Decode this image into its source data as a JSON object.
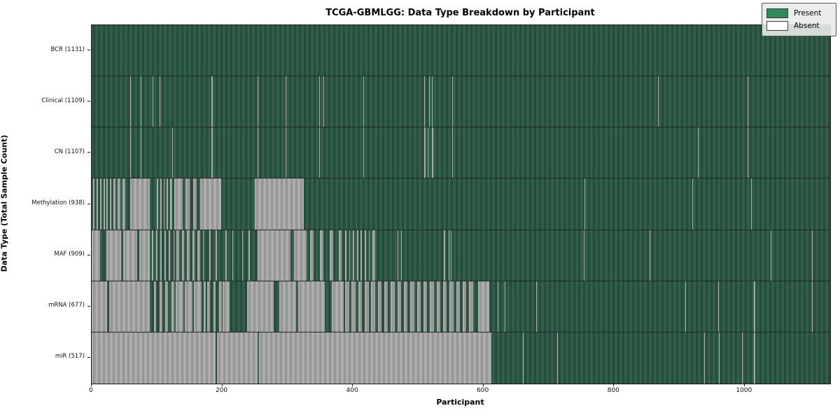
{
  "title": "TCGA-GBMLGG: Data Type Breakdown by Participant",
  "axes": {
    "xlabel": "Participant",
    "ylabel": "Data Type (Total Sample Count)",
    "x_ticks": [
      0,
      200,
      400,
      600,
      800,
      1000
    ],
    "x_min": 0,
    "x_max": 1131
  },
  "legend": {
    "items": [
      {
        "label": "Present",
        "color": "#2e8b57"
      },
      {
        "label": "Absent",
        "color": "#ffffff"
      }
    ]
  },
  "colors": {
    "present_bar": "#2e5c46",
    "absent_bar": "#a6a6a6",
    "plot_border": "#1a1a1a",
    "background": "#ffffff"
  },
  "chart_data": {
    "type": "heatmap",
    "title": "TCGA-GBMLGG: Data Type Breakdown by Participant",
    "xlabel": "Participant",
    "ylabel": "Data Type (Total Sample Count)",
    "n_participants": 1131,
    "legend_position": "upper right",
    "rows": [
      {
        "label": "BCR (1131)",
        "data_type": "BCR",
        "total_samples": 1131,
        "absent_ranges": []
      },
      {
        "label": "Clinical (1109)",
        "data_type": "Clinical",
        "total_samples": 1109,
        "absent_ranges": [
          [
            59,
            60
          ],
          [
            75,
            76
          ],
          [
            93,
            94
          ],
          [
            104,
            105
          ],
          [
            183,
            186
          ],
          [
            254,
            255
          ],
          [
            297,
            298
          ],
          [
            348,
            349
          ],
          [
            355,
            356
          ],
          [
            416,
            417
          ],
          [
            509,
            510
          ],
          [
            517,
            518
          ],
          [
            521,
            522
          ],
          [
            552,
            553
          ],
          [
            867,
            868
          ],
          [
            1005,
            1006
          ]
        ]
      },
      {
        "label": "CN (1107)",
        "data_type": "CN",
        "total_samples": 1107,
        "absent_ranges": [
          [
            59,
            60
          ],
          [
            75,
            76
          ],
          [
            123,
            124
          ],
          [
            183,
            186
          ],
          [
            254,
            255
          ],
          [
            297,
            298
          ],
          [
            348,
            349
          ],
          [
            416,
            417
          ],
          [
            509,
            511
          ],
          [
            515,
            516
          ],
          [
            521,
            523
          ],
          [
            552,
            553
          ],
          [
            928,
            929
          ],
          [
            1005,
            1006
          ]
        ]
      },
      {
        "label": "Methylation (938)",
        "data_type": "Methylation",
        "total_samples": 938,
        "absent_ranges": [
          [
            2,
            4
          ],
          [
            8,
            10
          ],
          [
            13,
            15
          ],
          [
            18,
            20
          ],
          [
            23,
            25
          ],
          [
            28,
            30
          ],
          [
            33,
            36
          ],
          [
            40,
            44
          ],
          [
            47,
            52
          ],
          [
            59,
            89
          ],
          [
            100,
            102
          ],
          [
            105,
            107
          ],
          [
            110,
            112
          ],
          [
            115,
            117
          ],
          [
            120,
            123
          ],
          [
            127,
            139
          ],
          [
            144,
            150
          ],
          [
            155,
            161
          ],
          [
            166,
            198
          ],
          [
            250,
            325
          ],
          [
            409,
            410
          ],
          [
            755,
            756
          ],
          [
            920,
            921
          ],
          [
            1010,
            1011
          ]
        ]
      },
      {
        "label": "MAF (909)",
        "data_type": "MAF",
        "total_samples": 909,
        "absent_ranges": [
          [
            0,
            13
          ],
          [
            22,
            45
          ],
          [
            48,
            70
          ],
          [
            73,
            89
          ],
          [
            92,
            94
          ],
          [
            99,
            101
          ],
          [
            105,
            107
          ],
          [
            112,
            114
          ],
          [
            118,
            120
          ],
          [
            125,
            127
          ],
          [
            130,
            134
          ],
          [
            138,
            142
          ],
          [
            146,
            150
          ],
          [
            154,
            158
          ],
          [
            162,
            166
          ],
          [
            170,
            172
          ],
          [
            180,
            182
          ],
          [
            190,
            192
          ],
          [
            205,
            207
          ],
          [
            215,
            217
          ],
          [
            230,
            232
          ],
          [
            240,
            242
          ],
          [
            254,
            305
          ],
          [
            310,
            329
          ],
          [
            335,
            340
          ],
          [
            350,
            355
          ],
          [
            365,
            370
          ],
          [
            378,
            383
          ],
          [
            388,
            390
          ],
          [
            394,
            396
          ],
          [
            400,
            402
          ],
          [
            406,
            408
          ],
          [
            412,
            414
          ],
          [
            418,
            420
          ],
          [
            424,
            426
          ],
          [
            430,
            434
          ],
          [
            469,
            470
          ],
          [
            474,
            475
          ],
          [
            513,
            514
          ],
          [
            539,
            541
          ],
          [
            547,
            548
          ],
          [
            550,
            551
          ],
          [
            754,
            755
          ],
          [
            854,
            855
          ],
          [
            1040,
            1041
          ],
          [
            1103,
            1104
          ]
        ]
      },
      {
        "label": "mRNA (677)",
        "data_type": "mRNA",
        "total_samples": 677,
        "absent_ranges": [
          [
            0,
            24
          ],
          [
            27,
            89
          ],
          [
            95,
            99
          ],
          [
            104,
            108
          ],
          [
            113,
            117
          ],
          [
            122,
            126
          ],
          [
            129,
            140
          ],
          [
            143,
            154
          ],
          [
            157,
            168
          ],
          [
            171,
            175
          ],
          [
            177,
            181
          ],
          [
            186,
            190
          ],
          [
            195,
            199
          ],
          [
            200,
            211
          ],
          [
            238,
            279
          ],
          [
            287,
            313
          ],
          [
            316,
            357
          ],
          [
            368,
            386
          ],
          [
            388,
            394
          ],
          [
            398,
            404
          ],
          [
            408,
            414
          ],
          [
            418,
            424
          ],
          [
            428,
            434
          ],
          [
            438,
            444
          ],
          [
            448,
            454
          ],
          [
            458,
            464
          ],
          [
            468,
            474
          ],
          [
            478,
            484
          ],
          [
            488,
            494
          ],
          [
            498,
            504
          ],
          [
            508,
            514
          ],
          [
            518,
            524
          ],
          [
            528,
            534
          ],
          [
            538,
            544
          ],
          [
            548,
            554
          ],
          [
            558,
            564
          ],
          [
            568,
            574
          ],
          [
            578,
            584
          ],
          [
            592,
            609
          ],
          [
            622,
            623
          ],
          [
            633,
            634
          ],
          [
            681,
            682
          ],
          [
            909,
            910
          ],
          [
            960,
            961
          ],
          [
            1014,
            1016
          ],
          [
            1103,
            1104
          ]
        ]
      },
      {
        "label": "miR (517)",
        "data_type": "miR",
        "total_samples": 517,
        "absent_ranges": [
          [
            0,
            190
          ],
          [
            192,
            254
          ],
          [
            256,
            612
          ],
          [
            660,
            661
          ],
          [
            713,
            714
          ],
          [
            938,
            939
          ],
          [
            961,
            962
          ],
          [
            996,
            997
          ],
          [
            1014,
            1016
          ]
        ]
      }
    ]
  }
}
